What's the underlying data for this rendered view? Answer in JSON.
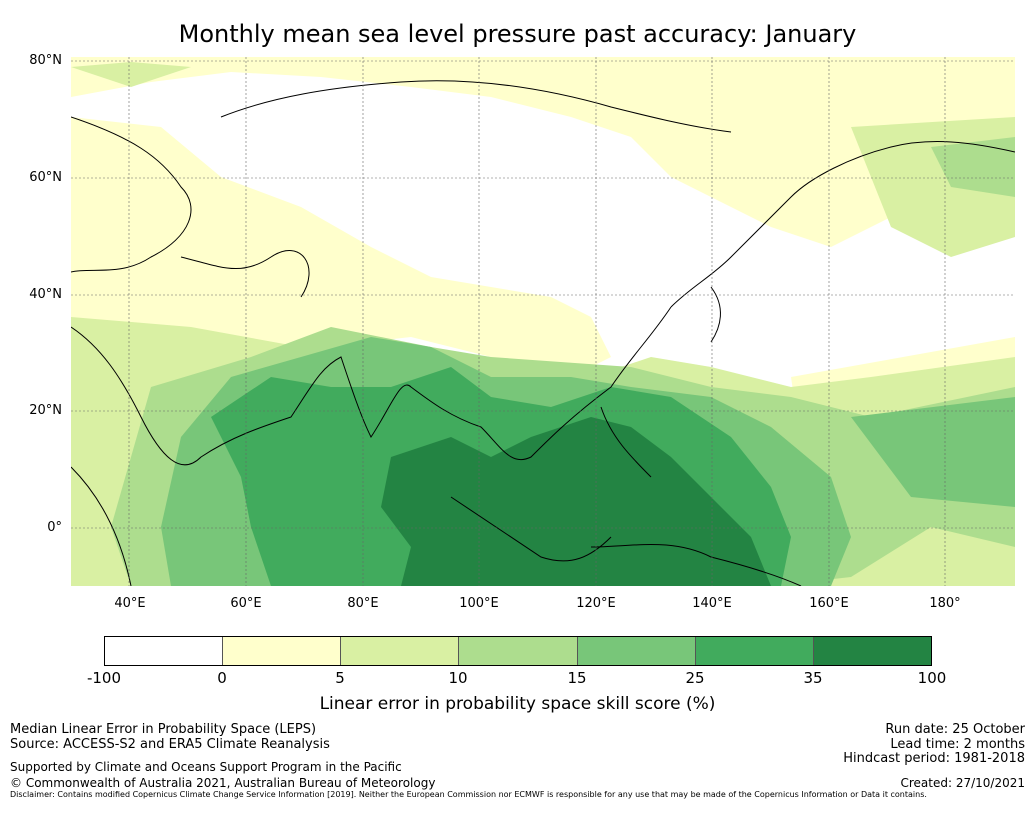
{
  "title": "Monthly mean sea level pressure past accuracy: January",
  "map": {
    "lat_labels": [
      "80°N",
      "60°N",
      "40°N",
      "20°N",
      "0°"
    ],
    "lon_labels": [
      "40°E",
      "60°E",
      "80°E",
      "100°E",
      "120°E",
      "140°E",
      "160°E",
      "180°"
    ],
    "extent": {
      "lon_min": 30,
      "lon_max": 192,
      "lat_min": -10,
      "lat_max": 81
    }
  },
  "colorbar": {
    "ticks": [
      "-100",
      "0",
      "5",
      "10",
      "15",
      "25",
      "35",
      "100"
    ],
    "colors": [
      "#ffffff",
      "#ffffcc",
      "#d9f0a3",
      "#addd8e",
      "#78c679",
      "#41ab5d",
      "#238443"
    ],
    "label": "Linear error in probability space skill score (%)"
  },
  "footer": {
    "left": [
      "Median Linear Error in Probability Space (LEPS)",
      "Source: ACCESS-S2 and ERA5 Climate Reanalysis"
    ],
    "supported": "Supported by Climate and Oceans Support Program in the Pacific",
    "copyright": "© Commonwealth of Australia 2021, Australian Bureau of Meteorology",
    "right": [
      "Run date: 25 October",
      "Lead time: 2 months",
      "Hindcast period: 1981-2018"
    ],
    "created": "Created: 27/10/2021",
    "disclaimer": "Disclaimer: Contains modified Copernicus Climate Change Service Information [2019]. Neither the European Commission nor ECMWF is responsible for any use that may be made of the Copernicus Information or Data it contains."
  }
}
